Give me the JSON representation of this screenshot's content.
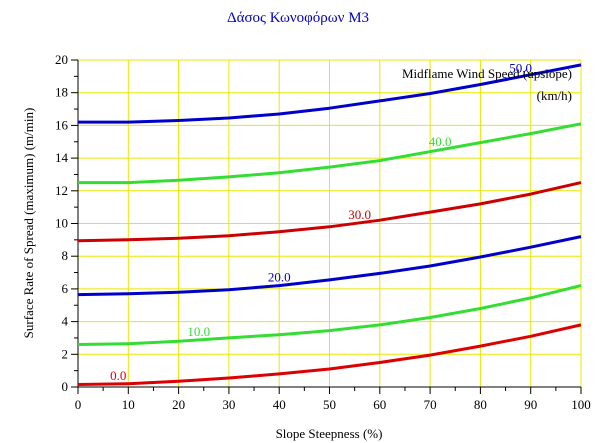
{
  "chart_data": {
    "type": "line",
    "title": "Δάσος Κωνοφόρων Μ3",
    "xlabel": "Slope Steepness (%)",
    "ylabel": "Surface Rate of Spread (maximum) (m/min)",
    "legend_title_line1": "Midflame Wind Speed (upslope)",
    "legend_title_line2": "(km/h)",
    "xlim": [
      0,
      100
    ],
    "ylim": [
      0,
      20
    ],
    "xticks": [
      0,
      10,
      20,
      30,
      40,
      50,
      60,
      70,
      80,
      90,
      100
    ],
    "yticks": [
      0,
      2,
      4,
      6,
      8,
      10,
      12,
      14,
      16,
      18,
      20
    ],
    "grid": true,
    "x": [
      0,
      10,
      20,
      30,
      40,
      50,
      60,
      70,
      80,
      90,
      100
    ],
    "series": [
      {
        "name": "0.0",
        "color": "#dd0000",
        "label_x": 8,
        "values": [
          0.15,
          0.2,
          0.35,
          0.55,
          0.8,
          1.1,
          1.5,
          1.95,
          2.5,
          3.1,
          3.8
        ]
      },
      {
        "name": "10.0",
        "color": "#33dd33",
        "label_x": 24,
        "values": [
          2.6,
          2.65,
          2.8,
          3.0,
          3.2,
          3.45,
          3.8,
          4.25,
          4.8,
          5.45,
          6.2
        ]
      },
      {
        "name": "20.0",
        "color": "#0000cc",
        "label_x": 40,
        "values": [
          5.65,
          5.7,
          5.8,
          5.95,
          6.2,
          6.55,
          6.95,
          7.4,
          7.95,
          8.55,
          9.2
        ]
      },
      {
        "name": "30.0",
        "color": "#cc0000",
        "label_x": 56,
        "values": [
          8.95,
          9.0,
          9.1,
          9.25,
          9.5,
          9.8,
          10.2,
          10.7,
          11.2,
          11.8,
          12.5
        ]
      },
      {
        "name": "40.0",
        "color": "#33dd33",
        "label_x": 72,
        "values": [
          12.5,
          12.5,
          12.65,
          12.85,
          13.1,
          13.45,
          13.85,
          14.4,
          14.95,
          15.5,
          16.1
        ]
      },
      {
        "name": "50.0",
        "color": "#0000cc",
        "label_x": 88,
        "values": [
          16.2,
          16.2,
          16.3,
          16.45,
          16.7,
          17.05,
          17.5,
          17.95,
          18.5,
          19.1,
          19.7
        ]
      }
    ]
  }
}
